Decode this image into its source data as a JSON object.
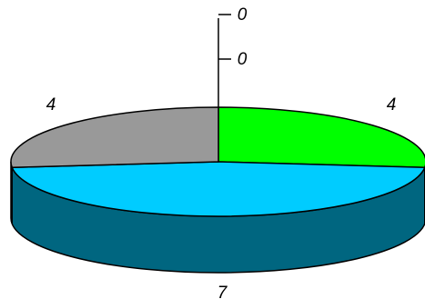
{
  "chart_data": {
    "type": "pie",
    "style": "3d",
    "slices": [
      {
        "value": 4,
        "label": "4",
        "color": "#00ff00"
      },
      {
        "value": 7,
        "label": "7",
        "color": "#00ccff"
      },
      {
        "value": 4,
        "label": "4",
        "color": "#999999"
      },
      {
        "value": 0,
        "label": "0",
        "color": "#ffffff"
      },
      {
        "value": 0,
        "label": "0",
        "color": "#ffffff"
      }
    ],
    "side_color": "#006680",
    "outline_color": "#000000",
    "legend": "none"
  }
}
